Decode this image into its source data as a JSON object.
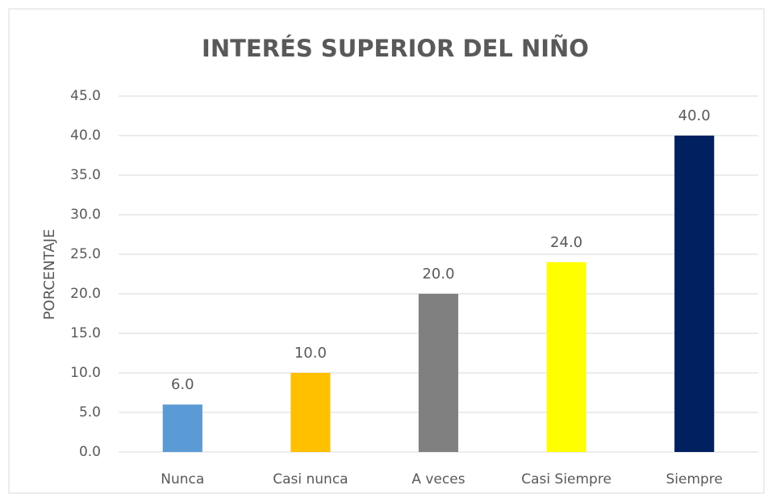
{
  "chart_data": {
    "type": "bar",
    "title": "INTERÉS SUPERIOR DEL NIÑO",
    "y_label": "PORCENTAJE",
    "categories": [
      "Nunca",
      "Casi nunca",
      "A veces",
      "Casi Siempre",
      "Siempre"
    ],
    "values": [
      6,
      10,
      20,
      24,
      40
    ],
    "value_labels": [
      "6.0",
      "10.0",
      "20.0",
      "24.0",
      "40.0"
    ],
    "colors": [
      "#5b9bd5",
      "#ffc000",
      "#808080",
      "#ffff00",
      "#002060"
    ],
    "ylim": [
      0,
      45
    ],
    "yticks": [
      {
        "value": 0,
        "label": "0.0"
      },
      {
        "value": 5,
        "label": "5.0"
      },
      {
        "value": 10,
        "label": "10.0"
      },
      {
        "value": 15,
        "label": "15.0"
      },
      {
        "value": 20,
        "label": "20.0"
      },
      {
        "value": 25,
        "label": "25.0"
      },
      {
        "value": 30,
        "label": "30.0"
      },
      {
        "value": 35,
        "label": "35.0"
      },
      {
        "value": 40,
        "label": "40.0"
      },
      {
        "value": 45,
        "label": "45.0"
      }
    ],
    "grid": true
  }
}
